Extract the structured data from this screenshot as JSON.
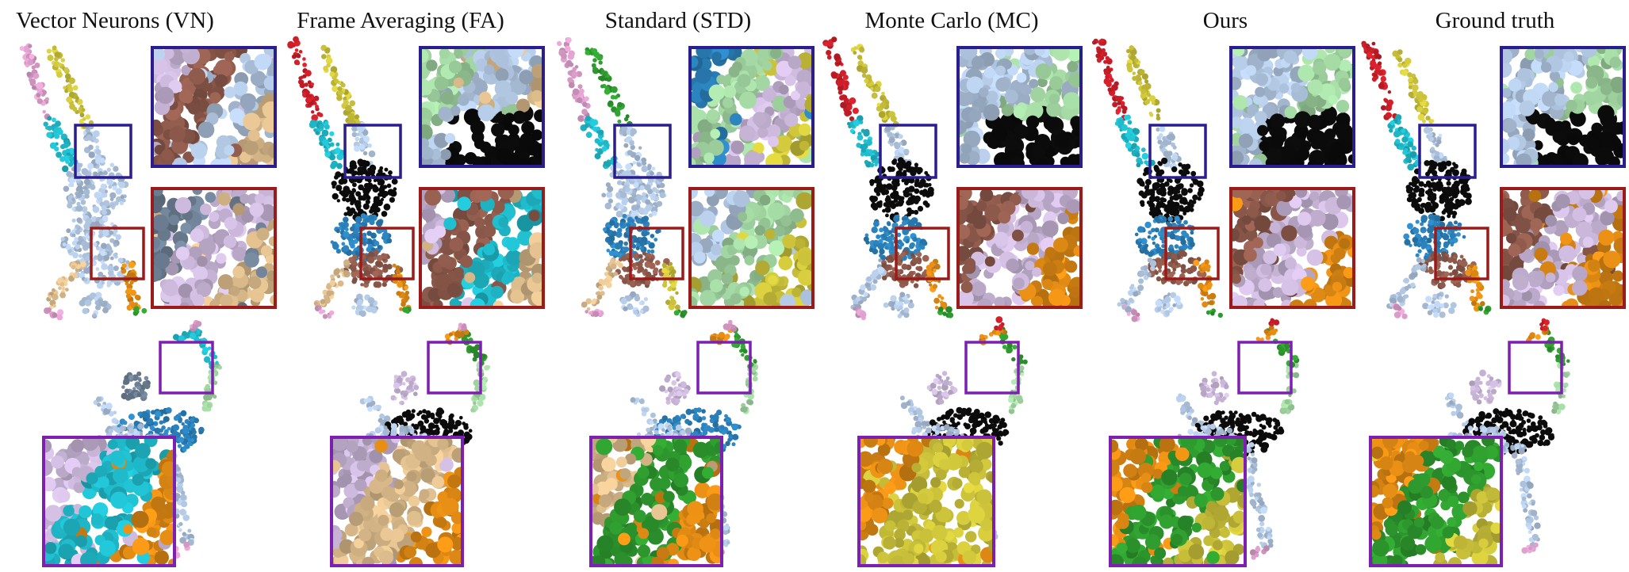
{
  "figure": {
    "columns": [
      {
        "title": "Vector Neurons (VN)"
      },
      {
        "title": "Frame Averaging (FA)"
      },
      {
        "title": "Standard (STD)"
      },
      {
        "title": "Monte Carlo (MC)"
      },
      {
        "title": "Ours"
      },
      {
        "title": "Ground truth"
      }
    ]
  },
  "colors": {
    "zoom_box_blue": "#2a1d8f",
    "zoom_box_red": "#9b1b1b",
    "zoom_box_purple": "#7d1fb0",
    "segment_black": "#0b0b0b",
    "segment_light_blue": "#aec3dd",
    "segment_green": "#9fd29f",
    "segment_orange": "#e08a14",
    "segment_tan": "#d9b98a",
    "segment_brown": "#8e5a4c",
    "segment_lavender": "#c7b4d6",
    "segment_cyan": "#1fb7c7",
    "segment_dark_green": "#2e9a2e",
    "segment_olive": "#c9c03a",
    "segment_pink": "#d79ac6",
    "segment_red": "#c81e28",
    "segment_steel_blue": "#2a7fb8",
    "segment_slate": "#6d7f93"
  }
}
